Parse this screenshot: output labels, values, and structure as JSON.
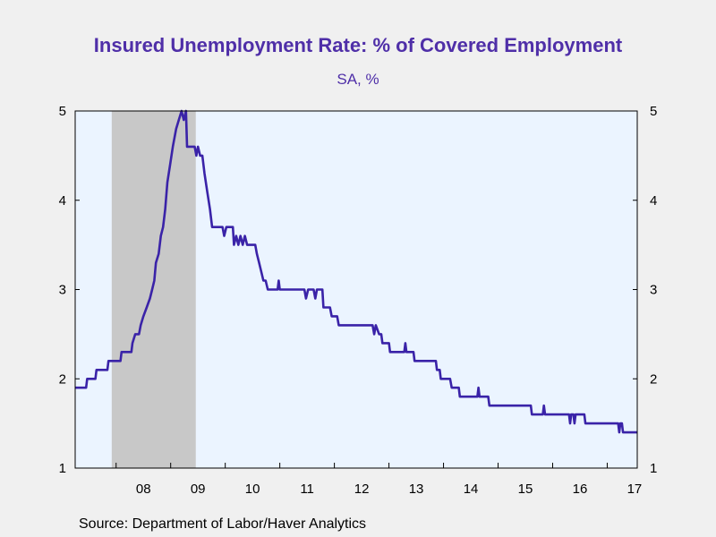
{
  "colors": {
    "background": "#f0f0f0",
    "plot_area": "#ebf4ff",
    "recession_shading": "#c8c8c8",
    "series_line": "#3a23a8",
    "title": "#4f2fa8"
  },
  "chart_data": {
    "type": "line",
    "title": "Insured Unemployment Rate: % of Covered Employment",
    "subtitle": "SA, %",
    "source": "Source:  Department of Labor/Haver Analytics",
    "xlabel": "",
    "ylabel": "",
    "xlim": [
      2007.25,
      2017.55
    ],
    "ylim": [
      1,
      5
    ],
    "yticks": [
      1,
      2,
      3,
      4,
      5
    ],
    "x_tick_labels": [
      "08",
      "09",
      "10",
      "11",
      "12",
      "13",
      "14",
      "15",
      "16",
      "17"
    ],
    "x_tick_positions": [
      2008,
      2009,
      2010,
      2011,
      2012,
      2013,
      2014,
      2015,
      2016,
      2017
    ],
    "x_label_positions": [
      2008.5,
      2009.5,
      2010.5,
      2011.5,
      2012.5,
      2013.5,
      2014.5,
      2015.5,
      2016.5,
      2017.5
    ],
    "y_axis_right": true,
    "grid": false,
    "recession_shading": [
      [
        2007.92,
        2009.46
      ]
    ],
    "series": [
      {
        "points": [
          [
            2007.25,
            1.9
          ],
          [
            2007.45,
            1.9
          ],
          [
            2007.47,
            2.0
          ],
          [
            2007.62,
            2.0
          ],
          [
            2007.64,
            2.1
          ],
          [
            2007.84,
            2.1
          ],
          [
            2007.86,
            2.2
          ],
          [
            2008.08,
            2.2
          ],
          [
            2008.1,
            2.3
          ],
          [
            2008.28,
            2.3
          ],
          [
            2008.3,
            2.4
          ],
          [
            2008.35,
            2.5
          ],
          [
            2008.42,
            2.5
          ],
          [
            2008.45,
            2.6
          ],
          [
            2008.5,
            2.7
          ],
          [
            2008.56,
            2.8
          ],
          [
            2008.62,
            2.9
          ],
          [
            2008.66,
            3.0
          ],
          [
            2008.7,
            3.1
          ],
          [
            2008.73,
            3.3
          ],
          [
            2008.78,
            3.4
          ],
          [
            2008.82,
            3.6
          ],
          [
            2008.86,
            3.7
          ],
          [
            2008.9,
            3.9
          ],
          [
            2008.94,
            4.2
          ],
          [
            2008.99,
            4.4
          ],
          [
            2009.04,
            4.6
          ],
          [
            2009.1,
            4.8
          ],
          [
            2009.15,
            4.9
          ],
          [
            2009.2,
            5.0
          ],
          [
            2009.24,
            4.9
          ],
          [
            2009.28,
            5.0
          ],
          [
            2009.3,
            4.6
          ],
          [
            2009.44,
            4.6
          ],
          [
            2009.47,
            4.5
          ],
          [
            2009.5,
            4.6
          ],
          [
            2009.54,
            4.5
          ],
          [
            2009.58,
            4.5
          ],
          [
            2009.62,
            4.3
          ],
          [
            2009.67,
            4.1
          ],
          [
            2009.72,
            3.9
          ],
          [
            2009.76,
            3.7
          ],
          [
            2009.95,
            3.7
          ],
          [
            2009.98,
            3.6
          ],
          [
            2010.02,
            3.7
          ],
          [
            2010.14,
            3.7
          ],
          [
            2010.16,
            3.5
          ],
          [
            2010.2,
            3.6
          ],
          [
            2010.24,
            3.5
          ],
          [
            2010.28,
            3.6
          ],
          [
            2010.32,
            3.5
          ],
          [
            2010.36,
            3.6
          ],
          [
            2010.4,
            3.5
          ],
          [
            2010.55,
            3.5
          ],
          [
            2010.58,
            3.4
          ],
          [
            2010.62,
            3.3
          ],
          [
            2010.66,
            3.2
          ],
          [
            2010.7,
            3.1
          ],
          [
            2010.74,
            3.1
          ],
          [
            2010.78,
            3.0
          ],
          [
            2010.96,
            3.0
          ],
          [
            2010.98,
            3.1
          ],
          [
            2011.0,
            3.0
          ],
          [
            2011.45,
            3.0
          ],
          [
            2011.48,
            2.9
          ],
          [
            2011.52,
            3.0
          ],
          [
            2011.62,
            3.0
          ],
          [
            2011.65,
            2.9
          ],
          [
            2011.68,
            3.0
          ],
          [
            2011.78,
            3.0
          ],
          [
            2011.8,
            2.8
          ],
          [
            2011.92,
            2.8
          ],
          [
            2011.95,
            2.7
          ],
          [
            2012.05,
            2.7
          ],
          [
            2012.08,
            2.6
          ],
          [
            2012.7,
            2.6
          ],
          [
            2012.73,
            2.5
          ],
          [
            2012.76,
            2.6
          ],
          [
            2012.82,
            2.5
          ],
          [
            2012.86,
            2.5
          ],
          [
            2012.88,
            2.4
          ],
          [
            2013.0,
            2.4
          ],
          [
            2013.02,
            2.3
          ],
          [
            2013.28,
            2.3
          ],
          [
            2013.3,
            2.4
          ],
          [
            2013.32,
            2.3
          ],
          [
            2013.45,
            2.3
          ],
          [
            2013.47,
            2.2
          ],
          [
            2013.86,
            2.2
          ],
          [
            2013.88,
            2.1
          ],
          [
            2013.93,
            2.1
          ],
          [
            2013.95,
            2.0
          ],
          [
            2014.12,
            2.0
          ],
          [
            2014.15,
            1.9
          ],
          [
            2014.28,
            1.9
          ],
          [
            2014.3,
            1.8
          ],
          [
            2014.62,
            1.8
          ],
          [
            2014.64,
            1.9
          ],
          [
            2014.66,
            1.8
          ],
          [
            2014.82,
            1.8
          ],
          [
            2014.84,
            1.7
          ],
          [
            2015.6,
            1.7
          ],
          [
            2015.62,
            1.6
          ],
          [
            2015.82,
            1.6
          ],
          [
            2015.84,
            1.7
          ],
          [
            2015.86,
            1.6
          ],
          [
            2016.3,
            1.6
          ],
          [
            2016.32,
            1.5
          ],
          [
            2016.34,
            1.6
          ],
          [
            2016.38,
            1.6
          ],
          [
            2016.4,
            1.5
          ],
          [
            2016.42,
            1.6
          ],
          [
            2016.58,
            1.6
          ],
          [
            2016.6,
            1.5
          ],
          [
            2017.2,
            1.5
          ],
          [
            2017.22,
            1.4
          ],
          [
            2017.24,
            1.5
          ],
          [
            2017.27,
            1.5
          ],
          [
            2017.29,
            1.4
          ],
          [
            2017.55,
            1.4
          ]
        ]
      }
    ]
  }
}
